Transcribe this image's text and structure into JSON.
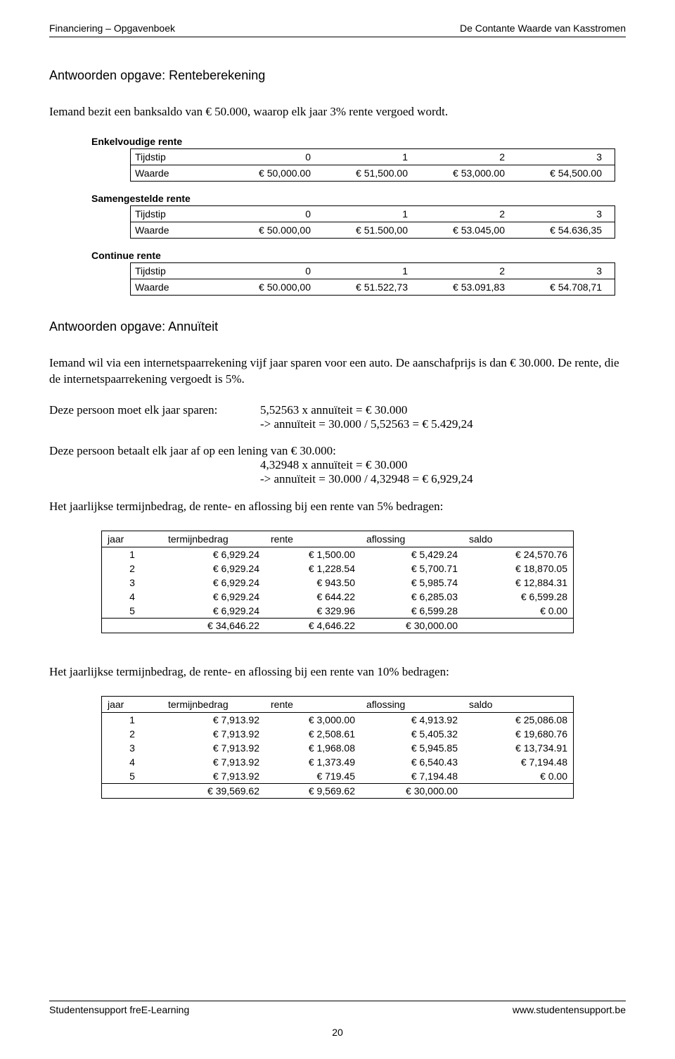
{
  "header": {
    "left": "Financiering – Opgavenboek",
    "right": "De Contante Waarde van Kasstromen"
  },
  "section1": {
    "title": "Antwoorden opgave: Renteberekening",
    "intro": "Iemand bezit een banksaldo van € 50.000, waarop elk jaar 3% rente vergoed wordt."
  },
  "timeTables": [
    {
      "title": "Enkelvoudige rente",
      "rows": [
        {
          "label": "Tijdstip",
          "cells": [
            "0",
            "1",
            "2",
            "3"
          ]
        },
        {
          "label": "Waarde",
          "cells": [
            "€ 50,000.00",
            "€ 51,500.00",
            "€ 53,000.00",
            "€ 54,500.00"
          ]
        }
      ]
    },
    {
      "title": "Samengestelde rente",
      "rows": [
        {
          "label": "Tijdstip",
          "cells": [
            "0",
            "1",
            "2",
            "3"
          ]
        },
        {
          "label": "Waarde",
          "cells": [
            "€ 50.000,00",
            "€ 51.500,00",
            "€ 53.045,00",
            "€ 54.636,35"
          ]
        }
      ]
    },
    {
      "title": "Continue rente",
      "rows": [
        {
          "label": "Tijdstip",
          "cells": [
            "0",
            "1",
            "2",
            "3"
          ]
        },
        {
          "label": "Waarde",
          "cells": [
            "€ 50.000,00",
            "€ 51.522,73",
            "€ 53.091,83",
            "€ 54.708,71"
          ]
        }
      ]
    }
  ],
  "section2": {
    "title": "Antwoorden opgave: Annuïteit",
    "intro": "Iemand wil via een internetspaarrekening vijf jaar sparen voor een auto. De aanschafprijs is dan € 30.000. De rente, die de internetspaarrekening vergoedt is 5%.",
    "calcA": {
      "lead": "Deze persoon moet elk jaar sparen:",
      "line1": "5,52563  x  annuïteit  =  € 30.000",
      "line2": "-> annuïteit = 30.000 / 5,52563  =  € 5.429,24"
    },
    "calcB": {
      "lead": "Deze persoon betaalt elk jaar af op een lening van € 30.000:",
      "line1": "4,32948  x  annuïteit  =  € 30.000",
      "line2": "-> annuïteit =  30.000 / 4,32948  =  € 6,929,24"
    },
    "t5caption": "Het jaarlijkse termijnbedrag, de rente- en aflossing bij een rente van 5% bedragen:",
    "t10caption": "Het jaarlijkse termijnbedrag, de rente- en aflossing bij een rente van 10% bedragen:"
  },
  "amortHeaders": {
    "year": "jaar",
    "term": "termijnbedrag",
    "int": "rente",
    "afl": "aflossing",
    "sal": "saldo"
  },
  "amort5": {
    "rows": [
      {
        "year": "1",
        "term": "€ 6,929.24",
        "int": "€ 1,500.00",
        "afl": "€ 5,429.24",
        "sal": "€ 24,570.76"
      },
      {
        "year": "2",
        "term": "€ 6,929.24",
        "int": "€ 1,228.54",
        "afl": "€ 5,700.71",
        "sal": "€ 18,870.05"
      },
      {
        "year": "3",
        "term": "€ 6,929.24",
        "int": "€ 943.50",
        "afl": "€ 5,985.74",
        "sal": "€ 12,884.31"
      },
      {
        "year": "4",
        "term": "€ 6,929.24",
        "int": "€ 644.22",
        "afl": "€ 6,285.03",
        "sal": "€ 6,599.28"
      },
      {
        "year": "5",
        "term": "€ 6,929.24",
        "int": "€ 329.96",
        "afl": "€ 6,599.28",
        "sal": "€ 0.00"
      }
    ],
    "total": {
      "term": "€ 34,646.22",
      "int": "€ 4,646.22",
      "afl": "€ 30,000.00"
    }
  },
  "amort10": {
    "rows": [
      {
        "year": "1",
        "term": "€ 7,913.92",
        "int": "€ 3,000.00",
        "afl": "€ 4,913.92",
        "sal": "€ 25,086.08"
      },
      {
        "year": "2",
        "term": "€ 7,913.92",
        "int": "€ 2,508.61",
        "afl": "€ 5,405.32",
        "sal": "€ 19,680.76"
      },
      {
        "year": "3",
        "term": "€ 7,913.92",
        "int": "€ 1,968.08",
        "afl": "€ 5,945.85",
        "sal": "€ 13,734.91"
      },
      {
        "year": "4",
        "term": "€ 7,913.92",
        "int": "€ 1,373.49",
        "afl": "€ 6,540.43",
        "sal": "€ 7,194.48"
      },
      {
        "year": "5",
        "term": "€ 7,913.92",
        "int": "€ 719.45",
        "afl": "€ 7,194.48",
        "sal": "€ 0.00"
      }
    ],
    "total": {
      "term": "€ 39,569.62",
      "int": "€ 9,569.62",
      "afl": "€ 30,000.00"
    }
  },
  "footer": {
    "left": "Studentensupport freE-Learning",
    "right": "www.studentensupport.be",
    "page": "20"
  }
}
